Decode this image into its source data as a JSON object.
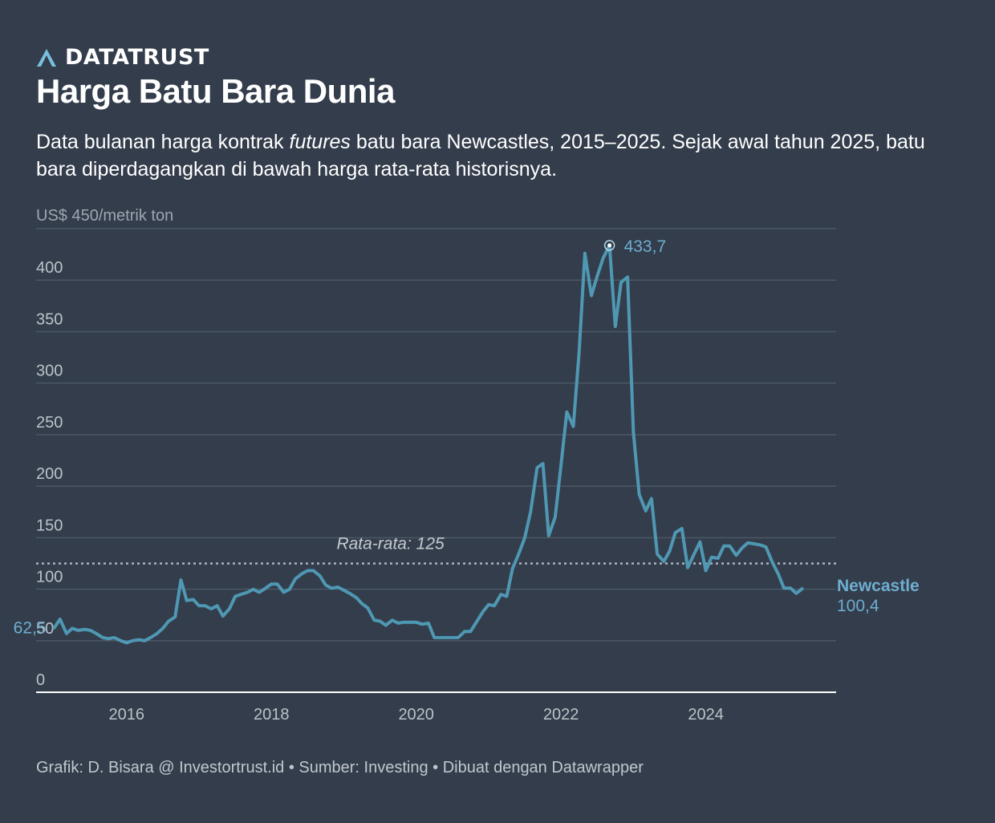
{
  "brand": {
    "name": "DATATRUST"
  },
  "header": {
    "title": "Harga Batu Bara Dunia",
    "subtitle_part1": "Data bulanan harga kontrak ",
    "subtitle_italic": "futures",
    "subtitle_part2": " batu bara Newcastles, 2015–2025. Sejak awal tahun 2025, batu bara diperdagangkan di bawah harga rata-rata historisnya."
  },
  "footer": {
    "text": "Grafik: D. Bisara @ Investortrust.id • Sumber: Investing • Dibuat dengan Datawrapper"
  },
  "colors": {
    "background": "#333d4b",
    "line": "#4f98b3",
    "label": "#6eaed0",
    "grid": "#4d5866",
    "axis_text": "#bcc2c9",
    "average": "#aeb5bd"
  },
  "chart_data": {
    "type": "line",
    "title": "Harga Batu Bara Dunia",
    "ylabel": "US$ 450/metrik ton",
    "ylim": [
      0,
      450
    ],
    "yticks": [
      0,
      50,
      100,
      150,
      200,
      250,
      300,
      350,
      400
    ],
    "ytick_labels": [
      "0",
      "50",
      "100",
      "150",
      "200",
      "250",
      "300",
      "350",
      "400"
    ],
    "top_tick_label": "US$ 450/metrik ton",
    "xlim": [
      2014.75,
      2025.8
    ],
    "xticks": [
      2016,
      2018,
      2020,
      2022,
      2024
    ],
    "xtick_labels": [
      "2016",
      "2018",
      "2020",
      "2022",
      "2024"
    ],
    "average": {
      "value": 125,
      "label": "Rata-rata: 125"
    },
    "series": [
      {
        "name": "Newcastle",
        "end_label": "100,4",
        "start_label": "62,5",
        "peak_label": "433,7",
        "x": [
          2015.0,
          2015.08,
          2015.17,
          2015.25,
          2015.33,
          2015.42,
          2015.5,
          2015.58,
          2015.67,
          2015.75,
          2015.83,
          2015.92,
          2016.0,
          2016.08,
          2016.17,
          2016.25,
          2016.33,
          2016.42,
          2016.5,
          2016.58,
          2016.67,
          2016.75,
          2016.83,
          2016.92,
          2017.0,
          2017.08,
          2017.17,
          2017.25,
          2017.33,
          2017.42,
          2017.5,
          2017.58,
          2017.67,
          2017.75,
          2017.83,
          2017.92,
          2018.0,
          2018.08,
          2018.17,
          2018.25,
          2018.33,
          2018.42,
          2018.5,
          2018.58,
          2018.67,
          2018.75,
          2018.83,
          2018.92,
          2019.0,
          2019.08,
          2019.17,
          2019.25,
          2019.33,
          2019.42,
          2019.5,
          2019.58,
          2019.67,
          2019.75,
          2019.83,
          2019.92,
          2020.0,
          2020.08,
          2020.17,
          2020.25,
          2020.33,
          2020.42,
          2020.5,
          2020.58,
          2020.67,
          2020.75,
          2020.83,
          2020.92,
          2021.0,
          2021.08,
          2021.17,
          2021.25,
          2021.33,
          2021.42,
          2021.5,
          2021.58,
          2021.67,
          2021.75,
          2021.83,
          2021.92,
          2022.0,
          2022.08,
          2022.17,
          2022.25,
          2022.33,
          2022.42,
          2022.5,
          2022.58,
          2022.67,
          2022.75,
          2022.83,
          2022.92,
          2023.0,
          2023.08,
          2023.17,
          2023.25,
          2023.33,
          2023.42,
          2023.5,
          2023.58,
          2023.67,
          2023.75,
          2023.83,
          2023.92,
          2024.0,
          2024.08,
          2024.17,
          2024.25,
          2024.33,
          2024.42,
          2024.5,
          2024.58,
          2024.67,
          2024.75,
          2024.83,
          2024.92,
          2025.0,
          2025.08,
          2025.17,
          2025.25,
          2025.33
        ],
        "values": [
          62.5,
          71,
          57,
          62,
          60,
          61,
          60,
          57,
          53,
          52,
          53,
          50,
          48,
          50,
          51,
          50,
          53,
          57,
          62,
          69,
          73,
          109,
          89,
          90,
          84,
          84,
          81,
          84,
          74,
          81,
          93,
          95,
          97,
          100,
          97,
          101,
          105,
          105,
          97,
          100,
          110,
          115,
          118,
          118,
          113,
          104,
          101,
          102,
          99,
          96,
          92,
          86,
          82,
          70,
          69,
          65,
          70,
          67,
          68,
          68,
          68,
          66,
          67,
          53,
          53,
          53,
          53,
          53,
          59,
          59,
          68,
          78,
          85,
          84,
          95,
          93,
          120,
          135,
          150,
          175,
          218,
          222,
          152,
          170,
          220,
          272,
          258,
          330,
          426,
          385,
          404,
          421,
          433.7,
          355,
          398,
          403,
          252,
          192,
          176,
          188,
          134,
          127,
          137,
          155,
          159,
          121,
          133,
          146,
          118,
          131,
          130,
          142,
          142,
          133,
          140,
          145,
          144,
          143,
          141,
          126,
          115,
          101,
          101,
          96,
          100.4
        ]
      }
    ]
  }
}
